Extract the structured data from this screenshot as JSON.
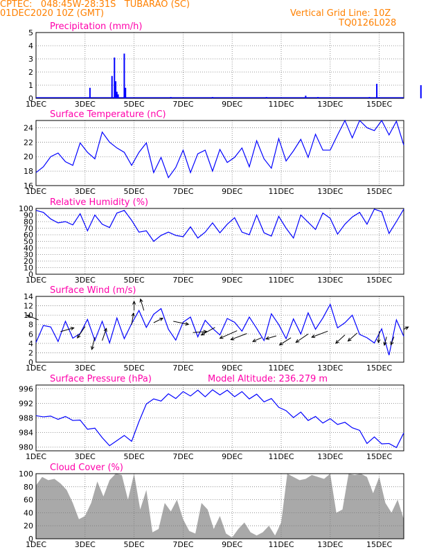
{
  "header": {
    "line1": "CPTEC:   048:45W-28:31S   TUBARAO (SC)",
    "line2": "01DEC2020 10Z (GMT)",
    "grid_note": "Vertical Grid Line: 10Z",
    "code": "TQ0126L028"
  },
  "x_ticks": [
    "1DEC",
    "3DEC",
    "5DEC",
    "7DEC",
    "9DEC",
    "11DEC",
    "13DEC",
    "15DEC"
  ],
  "x_range_days": [
    0,
    15
  ],
  "colors": {
    "title": "#ff00aa",
    "line": "#0000ff",
    "bar": "#0000ff",
    "grid": "#777777",
    "cloud": "#a9a9a9",
    "arrow": "#000000",
    "header": "#ff8000"
  },
  "chart_data": [
    {
      "type": "bar",
      "title": "Precipitation (mm/h)",
      "ylim": [
        0,
        5
      ],
      "yticks": [
        0,
        1,
        2,
        3,
        4,
        5
      ],
      "ylabels": [
        "0",
        "1",
        "2",
        "3",
        "4",
        "5"
      ],
      "x": [
        2.2,
        3.1,
        3.2,
        3.25,
        3.3,
        3.35,
        3.6,
        3.65,
        5.5,
        7.2,
        9.4,
        11.0,
        11.5,
        13.6,
        13.9,
        15.7
      ],
      "values": [
        0.8,
        1.7,
        3.1,
        1.3,
        0.5,
        0.3,
        3.4,
        0.8,
        0.1,
        0.1,
        0.1,
        0.2,
        0.1,
        0.1,
        1.1,
        1.0
      ]
    },
    {
      "type": "line",
      "title": "Surface Temperature (nC)",
      "ylim": [
        16,
        25
      ],
      "yticks": [
        16,
        18,
        20,
        22,
        24
      ],
      "ylabels": [
        "16",
        "18",
        "20",
        "22",
        "24"
      ],
      "x": [
        0,
        0.3,
        0.6,
        0.9,
        1.2,
        1.5,
        1.8,
        2.1,
        2.4,
        2.7,
        3.0,
        3.3,
        3.6,
        3.9,
        4.2,
        4.5,
        4.8,
        5.1,
        5.4,
        5.7,
        6.0,
        6.3,
        6.6,
        6.9,
        7.2,
        7.5,
        7.8,
        8.1,
        8.4,
        8.7,
        9.0,
        9.3,
        9.6,
        9.9,
        10.2,
        10.5,
        10.8,
        11.1,
        11.4,
        11.7,
        12.0,
        12.3,
        12.6,
        12.9,
        13.2,
        13.5,
        13.8,
        14.1,
        14.4,
        14.7,
        15.0
      ],
      "values": [
        17.8,
        18.6,
        20.0,
        20.5,
        19.3,
        18.8,
        21.9,
        20.6,
        19.7,
        23.4,
        22.0,
        21.2,
        20.6,
        18.8,
        20.6,
        21.9,
        17.8,
        19.9,
        17.1,
        18.5,
        20.9,
        17.8,
        20.4,
        20.9,
        18.0,
        21.0,
        19.2,
        19.9,
        21.2,
        18.6,
        22.2,
        19.7,
        18.4,
        22.5,
        19.4,
        20.8,
        22.4,
        19.9,
        23.1,
        20.9,
        20.9,
        23.0,
        25.0,
        22.6,
        25.0,
        24.0,
        23.6,
        25.0,
        23.0,
        24.9,
        21.6
      ]
    },
    {
      "type": "line",
      "title": "Relative Humidity (%)",
      "ylim": [
        0,
        100
      ],
      "yticks": [
        0,
        10,
        20,
        30,
        40,
        50,
        60,
        70,
        80,
        90,
        100
      ],
      "ylabels": [
        "0",
        "10",
        "20",
        "30",
        "40",
        "50",
        "60",
        "70",
        "80",
        "90",
        "100"
      ],
      "x": [
        0,
        0.3,
        0.6,
        0.9,
        1.2,
        1.5,
        1.8,
        2.1,
        2.4,
        2.7,
        3.0,
        3.3,
        3.6,
        3.9,
        4.2,
        4.5,
        4.8,
        5.1,
        5.4,
        5.7,
        6.0,
        6.3,
        6.6,
        6.9,
        7.2,
        7.5,
        7.8,
        8.1,
        8.4,
        8.7,
        9.0,
        9.3,
        9.6,
        9.9,
        10.2,
        10.5,
        10.8,
        11.1,
        11.4,
        11.7,
        12.0,
        12.3,
        12.6,
        12.9,
        13.2,
        13.5,
        13.8,
        14.1,
        14.4,
        14.7,
        15.0
      ],
      "values": [
        97,
        94,
        84,
        78,
        80,
        75,
        92,
        66,
        90,
        76,
        71,
        93,
        97,
        82,
        64,
        66,
        50,
        59,
        64,
        59,
        57,
        72,
        55,
        64,
        78,
        63,
        76,
        86,
        64,
        60,
        90,
        63,
        58,
        88,
        70,
        55,
        90,
        79,
        68,
        93,
        85,
        61,
        76,
        87,
        94,
        76,
        99,
        95,
        62,
        80,
        99
      ]
    },
    {
      "type": "line",
      "title": "Surface Wind (m/s)",
      "ylim": [
        0,
        14
      ],
      "yticks": [
        0,
        2,
        4,
        6,
        8,
        10,
        12,
        14
      ],
      "ylabels": [
        "0",
        "2",
        "4",
        "6",
        "8",
        "10",
        "12",
        "14"
      ],
      "x": [
        0,
        0.3,
        0.6,
        0.9,
        1.2,
        1.5,
        1.8,
        2.1,
        2.4,
        2.7,
        3.0,
        3.3,
        3.6,
        3.9,
        4.2,
        4.5,
        4.8,
        5.1,
        5.4,
        5.7,
        6.0,
        6.3,
        6.6,
        6.9,
        7.2,
        7.5,
        7.8,
        8.1,
        8.4,
        8.7,
        9.0,
        9.3,
        9.6,
        9.9,
        10.2,
        10.5,
        10.8,
        11.1,
        11.4,
        11.7,
        12.0,
        12.3,
        12.6,
        12.9,
        13.2,
        13.5,
        13.8,
        14.1,
        14.4,
        14.7,
        15.0
      ],
      "values": [
        4.2,
        7.8,
        7.5,
        4.4,
        8.7,
        5.1,
        6.1,
        9.1,
        4.6,
        8.7,
        4.1,
        9.4,
        5.0,
        8.2,
        11.0,
        7.4,
        10.2,
        11.4,
        7.0,
        4.7,
        8.5,
        9.6,
        5.4,
        8.9,
        7.2,
        5.8,
        9.3,
        8.5,
        6.6,
        9.6,
        7.2,
        4.6,
        10.3,
        8.0,
        5.0,
        9.2,
        6.0,
        10.5,
        7.0,
        9.4,
        12.3,
        7.3,
        8.4,
        10.0,
        5.9,
        5.2,
        4.1,
        7.1,
        1.5,
        9.0,
        5.5
      ],
      "arrows": {
        "x": [
          0.1,
          1.0,
          2.0,
          2.4,
          2.7,
          3.9,
          4.0,
          4.4,
          4.8,
          5.6,
          6.4,
          7.3,
          8.2,
          8.6,
          9.2,
          9.8,
          10.4,
          11.1,
          11.9,
          12.6,
          13.1,
          14.0,
          14.3,
          14.6,
          15.0
        ],
        "y": [
          9.0,
          6.5,
          7.6,
          5.3,
          4.6,
          8.0,
          11.0,
          11.0,
          8.4,
          8.7,
          6.3,
          7.4,
          6.7,
          6.1,
          5.2,
          5.6,
          5.2,
          6.0,
          6.6,
          5.8,
          6.2,
          6.6,
          5.4,
          5.4,
          7.0
        ],
        "u": [
          -3.0,
          3.5,
          -2.0,
          -0.8,
          1.1,
          0.5,
          0.0,
          -0.9,
          2.4,
          4.0,
          3.6,
          -3.6,
          -4.5,
          -4.2,
          -2.3,
          -2.7,
          -3.0,
          -3.2,
          -4.2,
          -2.4,
          -2.4,
          -0.2,
          -0.6,
          -0.8,
          1.2
        ],
        "v": [
          1.2,
          1.0,
          -3.0,
          -3.2,
          3.2,
          3.0,
          2.4,
          3.0,
          1.2,
          -0.8,
          0.3,
          -2.0,
          -2.0,
          -1.6,
          -1.0,
          -0.8,
          -1.9,
          -2.2,
          -1.6,
          -2.2,
          -2.1,
          -3.0,
          -2.2,
          -2.1,
          0.6
        ]
      }
    },
    {
      "type": "line",
      "title": "Surface Pressure (hPa)",
      "note": "Model Altitude: 236.279  m",
      "ylim": [
        979,
        997
      ],
      "yticks": [
        980,
        984,
        988,
        992,
        996
      ],
      "ylabels": [
        "980",
        "984",
        "988",
        "992",
        "996"
      ],
      "x": [
        0,
        0.3,
        0.6,
        0.9,
        1.2,
        1.5,
        1.8,
        2.1,
        2.4,
        2.7,
        3.0,
        3.3,
        3.6,
        3.9,
        4.2,
        4.5,
        4.8,
        5.1,
        5.4,
        5.7,
        6.0,
        6.3,
        6.6,
        6.9,
        7.2,
        7.5,
        7.8,
        8.1,
        8.4,
        8.7,
        9.0,
        9.3,
        9.6,
        9.9,
        10.2,
        10.5,
        10.8,
        11.1,
        11.4,
        11.7,
        12.0,
        12.3,
        12.6,
        12.9,
        13.2,
        13.5,
        13.8,
        14.1,
        14.4,
        14.7,
        15.0
      ],
      "values": [
        988.6,
        988.3,
        988.5,
        987.6,
        988.4,
        987.3,
        987.4,
        984.9,
        985.2,
        982.6,
        980.4,
        981.8,
        983.2,
        981.6,
        987.0,
        991.8,
        993.2,
        992.6,
        994.6,
        993.3,
        995.2,
        994.0,
        995.6,
        993.8,
        995.7,
        994.3,
        995.6,
        993.8,
        995.2,
        993.2,
        994.5,
        992.4,
        993.3,
        990.9,
        990.0,
        988.1,
        989.6,
        987.3,
        988.4,
        986.6,
        987.8,
        986.2,
        986.8,
        985.3,
        984.6,
        981.0,
        982.8,
        980.9,
        981.0,
        979.9,
        983.9
      ]
    },
    {
      "type": "area",
      "title": "Cloud Cover (%)",
      "ylim": [
        0,
        100
      ],
      "yticks": [
        0,
        20,
        40,
        60,
        80,
        100
      ],
      "ylabels": [
        "0",
        "20",
        "40",
        "60",
        "80",
        "100"
      ],
      "x": [
        0,
        0.25,
        0.5,
        0.75,
        1.0,
        1.25,
        1.5,
        1.75,
        2.0,
        2.25,
        2.5,
        2.75,
        3.0,
        3.25,
        3.5,
        3.75,
        4.0,
        4.25,
        4.5,
        4.75,
        5.0,
        5.25,
        5.5,
        5.75,
        6.0,
        6.25,
        6.5,
        6.75,
        7.0,
        7.25,
        7.5,
        7.75,
        8.0,
        8.25,
        8.5,
        8.75,
        9.0,
        9.25,
        9.5,
        9.75,
        10.0,
        10.25,
        10.5,
        10.75,
        11.0,
        11.25,
        11.5,
        11.75,
        12.0,
        12.25,
        12.5,
        12.75,
        13.0,
        13.25,
        13.5,
        13.75,
        14.0,
        14.25,
        14.5,
        14.75,
        15.0
      ],
      "values": [
        82,
        95,
        90,
        92,
        85,
        75,
        55,
        30,
        35,
        55,
        88,
        65,
        90,
        100,
        98,
        60,
        100,
        45,
        75,
        10,
        15,
        55,
        42,
        60,
        30,
        12,
        8,
        55,
        45,
        15,
        35,
        8,
        2,
        15,
        25,
        10,
        5,
        10,
        20,
        5,
        25,
        100,
        95,
        90,
        92,
        98,
        95,
        92,
        100,
        40,
        45,
        100,
        98,
        100,
        95,
        70,
        95,
        55,
        40,
        60,
        30
      ]
    }
  ]
}
